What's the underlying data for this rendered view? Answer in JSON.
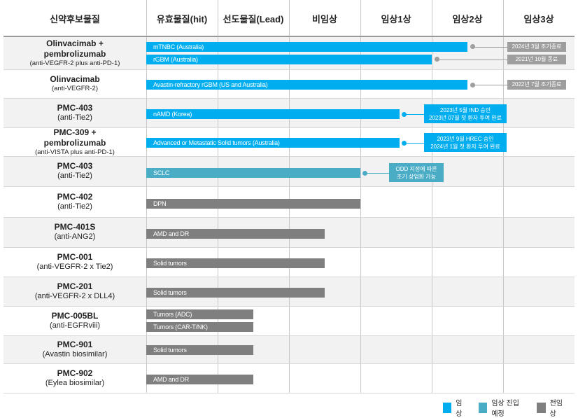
{
  "chart_data": {
    "type": "bar",
    "columns": [
      "신약후보물질",
      "유효물질(hit)",
      "선도물질(Lead)",
      "비임상",
      "임상1상",
      "임상2상",
      "임상3상"
    ],
    "stages": [
      "유효물질(hit)",
      "선도물질(Lead)",
      "비임상",
      "임상1상",
      "임상2상",
      "임상3상"
    ],
    "colors": {
      "clinical": "#00AEEF",
      "entering": "#4BACC6",
      "preclinical": "#7F7F7F",
      "note": "#9E9E9E",
      "header_line": "#9A9A9A",
      "alt_row": "#F2F2F2"
    },
    "legend": [
      {
        "key": "clinical",
        "label": "임상"
      },
      {
        "key": "entering",
        "label": "임상 진입예정"
      },
      {
        "key": "preclinical",
        "label": "전임상"
      }
    ],
    "rows": [
      {
        "name": "Olinvacimab +\npembrolizumab",
        "sub": "(anti-VEGFR-2 plus anti-PD-1)",
        "sub_small": true,
        "bars": [
          {
            "label": "mTNBC (Australia)",
            "status": "clinical",
            "progress": 4.5,
            "note": {
              "text": "2024년 3월 조기종료",
              "style": "gray"
            }
          },
          {
            "label": "rGBM (Australia)",
            "status": "clinical",
            "progress": 4.0,
            "note": {
              "text": "2021년 10월 종료",
              "style": "gray"
            }
          }
        ]
      },
      {
        "name": "Olinvacimab",
        "sub": "(anti-VEGFR-2)",
        "sub_small": true,
        "bars": [
          {
            "label": "Avastin-refractory rGBM (US and Australia)",
            "status": "clinical",
            "progress": 4.5,
            "note": {
              "text": "2022년 7월 조기종료",
              "style": "gray"
            }
          }
        ]
      },
      {
        "name": "PMC-403",
        "sub": "(anti-Tie2)",
        "sub_small": false,
        "bars": [
          {
            "label": "nAMD (Korea)",
            "status": "clinical",
            "progress": 3.55,
            "note": {
              "lines": [
                "2023년 5월 IND 승인",
                "2023년 07월 첫 환자 투여 완료"
              ],
              "style": "blue"
            }
          }
        ]
      },
      {
        "name": "PMC-309 +\npembrolizumab",
        "sub": "(anti-VISTA plus anti-PD-1)",
        "sub_small": true,
        "bars": [
          {
            "label": "Advanced or Metastatic Solid tumors (Australia)",
            "status": "clinical",
            "progress": 3.55,
            "note": {
              "lines": [
                "2023년 9월 HREC 승인",
                "2024년 1월 첫 환자 투여 완료"
              ],
              "style": "blue"
            }
          }
        ]
      },
      {
        "name": "PMC-403",
        "sub": "(anti-Tie2)",
        "sub_small": false,
        "bars": [
          {
            "label": "SCLC",
            "status": "entering",
            "progress": 3.0,
            "note": {
              "lines": [
                "ODD 지정에 따른",
                "조기 상업화 가능"
              ],
              "style": "teal"
            }
          }
        ]
      },
      {
        "name": "PMC-402",
        "sub": "(anti-Tie2)",
        "sub_small": false,
        "bars": [
          {
            "label": "DPN",
            "status": "preclinical",
            "progress": 3.0
          }
        ]
      },
      {
        "name": "PMC-401S",
        "sub": "(anti-ANG2)",
        "sub_small": false,
        "bars": [
          {
            "label": "AMD and DR",
            "status": "preclinical",
            "progress": 2.5
          }
        ]
      },
      {
        "name": "PMC-001",
        "sub": "(anti-VEGFR-2 x Tie2)",
        "sub_small": false,
        "bars": [
          {
            "label": "Solid tumors",
            "status": "preclinical",
            "progress": 2.5
          }
        ]
      },
      {
        "name": "PMC-201",
        "sub": "(anti-VEGFR-2 x DLL4)",
        "sub_small": false,
        "bars": [
          {
            "label": "Solid tumors",
            "status": "preclinical",
            "progress": 2.5
          }
        ]
      },
      {
        "name": "PMC-005BL",
        "sub": "(anti-EGFRviii)",
        "sub_small": false,
        "bars": [
          {
            "label": "Tumors (ADC)",
            "status": "preclinical",
            "progress": 1.5
          },
          {
            "label": "Tumors (CAR-T/NK)",
            "status": "preclinical",
            "progress": 1.5
          }
        ]
      },
      {
        "name": "PMC-901",
        "sub": "(Avastin biosimilar)",
        "sub_small": false,
        "bars": [
          {
            "label": "Solid tumors",
            "status": "preclinical",
            "progress": 1.5
          }
        ]
      },
      {
        "name": "PMC-902",
        "sub": "(Eylea biosimilar)",
        "sub_small": false,
        "bars": [
          {
            "label": "AMD and DR",
            "status": "preclinical",
            "progress": 1.5
          }
        ]
      }
    ]
  }
}
